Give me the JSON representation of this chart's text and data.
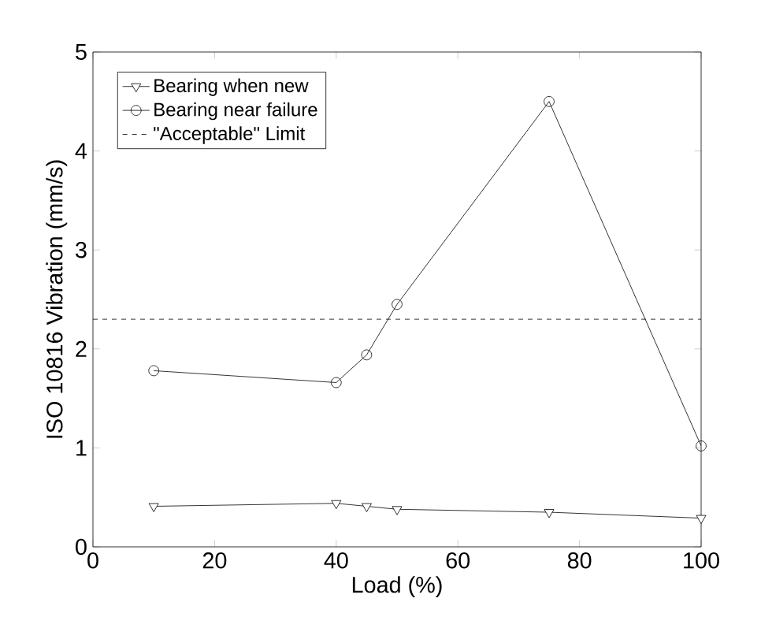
{
  "chart_data": {
    "type": "line",
    "xlabel": "Load (%)",
    "ylabel": "ISO 10816 Vibration (mm/s)",
    "x": [
      10,
      40,
      45,
      50,
      75,
      100
    ],
    "series": [
      {
        "name": "Bearing when new",
        "color": "#000000",
        "marker": "triangle",
        "values": [
          0.41,
          0.44,
          0.41,
          0.38,
          0.35,
          0.29
        ]
      },
      {
        "name": "Bearing near failure",
        "color": "#000000",
        "marker": "circle",
        "values": [
          1.78,
          1.66,
          1.94,
          2.45,
          4.5,
          1.02
        ]
      }
    ],
    "ref_lines": [
      {
        "axis": "y",
        "value": 2.3,
        "label": "\"Acceptable\" Limit",
        "color": "#000000",
        "line_style": "dashed"
      }
    ],
    "xlim": [
      0,
      100
    ],
    "xticks": [
      0,
      20,
      40,
      60,
      80,
      100
    ],
    "ylim": [
      0,
      5
    ],
    "yticks": [
      0,
      1,
      2,
      3,
      4,
      5
    ],
    "grid": false,
    "legend": "top left"
  }
}
